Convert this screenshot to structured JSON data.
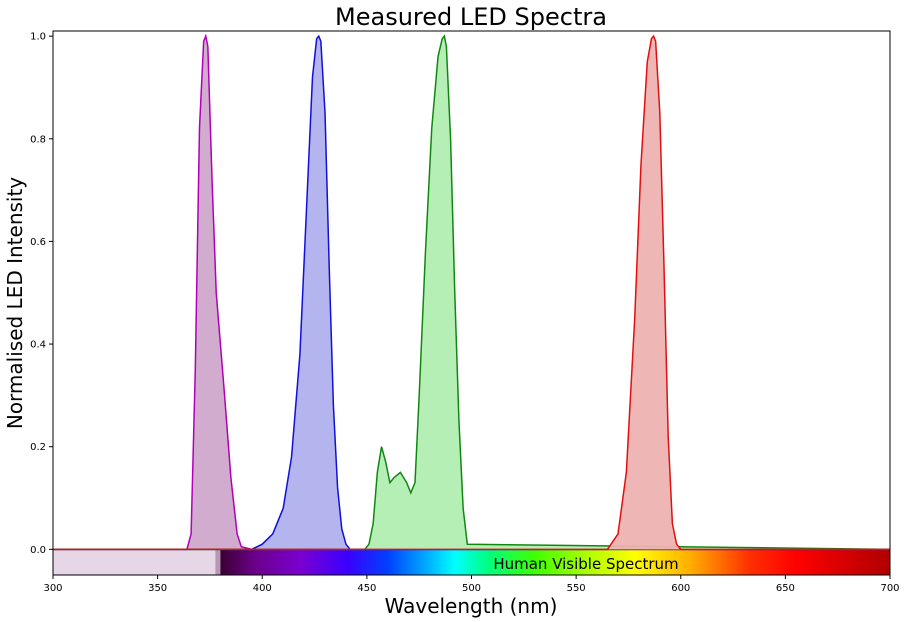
{
  "chart_data": {
    "type": "area",
    "title": "Measured LED Spectra",
    "xlabel": "Wavelength (nm)",
    "ylabel": "Normalised LED Intensity",
    "xlim": [
      300,
      700
    ],
    "ylim": [
      -0.05,
      1.01
    ],
    "xticks": [
      300,
      350,
      400,
      450,
      500,
      550,
      600,
      650,
      700
    ],
    "xtick_labels": [
      "300",
      "350",
      "400",
      "450",
      "500",
      "550",
      "600",
      "650",
      "700"
    ],
    "yticks": [
      0.0,
      0.2,
      0.4,
      0.6,
      0.8,
      1.0
    ],
    "ytick_labels": [
      "0.0",
      "0.2",
      "0.4",
      "0.6",
      "0.8",
      "1.0"
    ],
    "grid": false,
    "legend": "none",
    "annotation": "Human Visible Spectrum",
    "visible_band": {
      "start": 380,
      "end": 700
    },
    "uv_band": {
      "start": 300,
      "end": 380,
      "color": "#e6d6e6"
    },
    "series": [
      {
        "color": "#b000b8",
        "fill": "#d0a8cc",
        "x": [
          300,
          364,
          366,
          368,
          370,
          372,
          373,
          374,
          376,
          378,
          380,
          382,
          385,
          388,
          390,
          395,
          700
        ],
        "y": [
          0,
          0,
          0.03,
          0.35,
          0.82,
          0.99,
          1.0,
          0.98,
          0.72,
          0.5,
          0.4,
          0.3,
          0.14,
          0.03,
          0.005,
          0,
          0
        ]
      },
      {
        "color": "#1010d8",
        "fill": "#b0b0ee",
        "x": [
          300,
          395,
          400,
          405,
          410,
          414,
          418,
          421,
          424,
          426,
          427,
          428,
          430,
          432,
          434,
          436,
          438,
          440,
          442,
          700
        ],
        "y": [
          0,
          0,
          0.01,
          0.03,
          0.08,
          0.18,
          0.38,
          0.65,
          0.92,
          0.995,
          1.0,
          0.99,
          0.85,
          0.55,
          0.28,
          0.12,
          0.04,
          0.01,
          0,
          0
        ]
      },
      {
        "color": "#108810",
        "fill": "#b2eeb2",
        "x": [
          300,
          449,
          451,
          453,
          455,
          457,
          459,
          461,
          463,
          466,
          469,
          471,
          473,
          475,
          478,
          481,
          484,
          486,
          487,
          488,
          490,
          492,
          494,
          496,
          498,
          700
        ],
        "y": [
          0,
          0,
          0.01,
          0.05,
          0.15,
          0.2,
          0.17,
          0.13,
          0.14,
          0.15,
          0.13,
          0.11,
          0.13,
          0.3,
          0.58,
          0.82,
          0.96,
          0.995,
          1.0,
          0.98,
          0.8,
          0.5,
          0.25,
          0.08,
          0.01,
          0
        ]
      },
      {
        "color": "#e01010",
        "fill": "#eeb2b2",
        "x": [
          300,
          565,
          570,
          574,
          578,
          581,
          584,
          586,
          587,
          588,
          590,
          592,
          594,
          596,
          598,
          600,
          700
        ],
        "y": [
          0,
          0,
          0.03,
          0.15,
          0.45,
          0.75,
          0.95,
          0.995,
          1.0,
          0.99,
          0.85,
          0.55,
          0.22,
          0.05,
          0.01,
          0,
          0
        ]
      }
    ]
  }
}
